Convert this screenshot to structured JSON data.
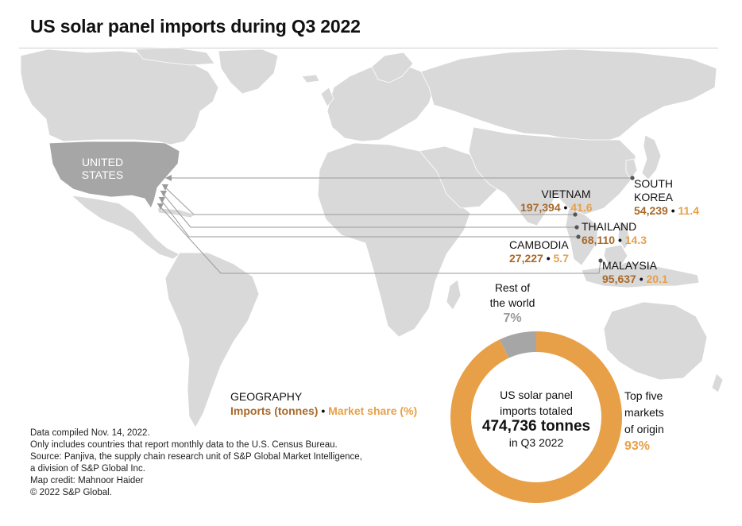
{
  "title": "US solar panel imports during Q3 2022",
  "colors": {
    "land": "#d9d9d9",
    "us_land": "#a6a6a6",
    "imports": "#a8692a",
    "share": "#e8a048",
    "rest": "#a6a6a6",
    "connector": "#9a9a9a"
  },
  "us_label": [
    "UNITED",
    "STATES"
  ],
  "markets": [
    {
      "key": "south-korea",
      "name": [
        "SOUTH",
        "KOREA"
      ],
      "imports": "54,239",
      "share": "11.4"
    },
    {
      "key": "vietnam",
      "name": [
        "VIETNAM"
      ],
      "imports": "197,394",
      "share": "41.6"
    },
    {
      "key": "thailand",
      "name": [
        "THAILAND"
      ],
      "imports": "68,110",
      "share": "14.3"
    },
    {
      "key": "cambodia",
      "name": [
        "CAMBODIA"
      ],
      "imports": "27,227",
      "share": "5.7"
    },
    {
      "key": "malaysia",
      "name": [
        "MALAYSIA"
      ],
      "imports": "95,637",
      "share": "20.1"
    }
  ],
  "sep": "•",
  "legend": {
    "heading": "GEOGRAPHY",
    "imports_label": "Imports (tonnes)",
    "share_label": "Market share (%)"
  },
  "donut": {
    "center_lines": [
      "US solar panel",
      "imports totaled",
      "474,736 tonnes",
      "in Q3 2022"
    ],
    "rest_label": [
      "Rest of",
      "the world"
    ],
    "rest_pct": "7%",
    "rest_value": 7,
    "top5_label": [
      "Top five",
      "markets",
      "of origin"
    ],
    "top5_pct": "93%",
    "top5_value": 93
  },
  "notes": [
    "Data compiled Nov. 14, 2022.",
    "Only includes countries that report monthly data to the U.S. Census Bureau.",
    "Source: Panjiva, the supply chain research unit of S&P Global Market Intelligence,",
    "a division of S&P Global Inc.",
    "Map credit: Mahnoor Haider",
    "© 2022 S&P Global."
  ]
}
